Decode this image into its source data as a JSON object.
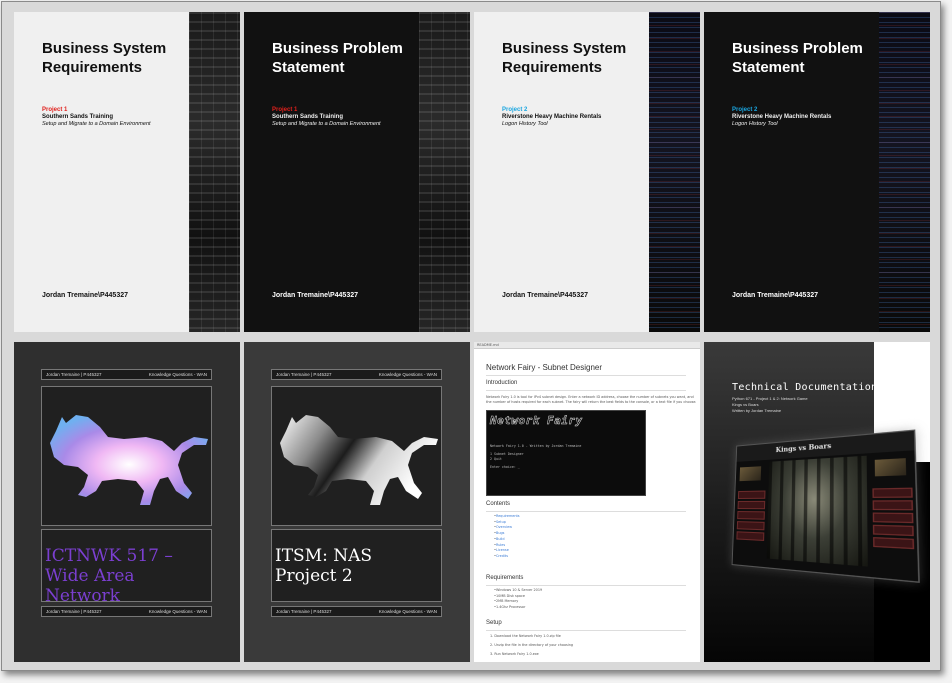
{
  "covers": [
    {
      "title": "Business System Requirements",
      "project": "Project 1",
      "subtitle": "Southern Sands Training",
      "tagline": "Setup and Migrate to a Domain Environment",
      "author": "Jordan Tremaine\\P445327"
    },
    {
      "title": "Business Problem Statement",
      "project": "Project 1",
      "subtitle": "Southern Sands Training",
      "tagline": "Setup and Migrate to a Domain Environment",
      "author": "Jordan Tremaine\\P445327"
    },
    {
      "title": "Business System Requirements",
      "project": "Project 2",
      "subtitle": "Riverstone Heavy Machine Rentals",
      "tagline": "Logon History Tool",
      "author": "Jordan Tremaine\\P445327"
    },
    {
      "title": "Business Problem Statement",
      "project": "Project 2",
      "subtitle": "Riverstone Heavy Machine Rentals",
      "tagline": "Logon History Tool",
      "author": "Jordan Tremaine\\P445327"
    }
  ],
  "lion_cards": [
    {
      "header_left": "Jordan Tremaine | P445327",
      "header_right": "Knowledge Questions - WAN",
      "title_line1": "ICTNWK 517 –",
      "title_line2": "Wide Area Network",
      "footer_left": "Jordan Tremaine | P445327",
      "footer_right": "Knowledge Questions - WAN"
    },
    {
      "header_left": "Jordan Tremaine | P445327",
      "header_right": "Knowledge Questions - WAN",
      "title_line1": "ITSM: NAS",
      "title_line2": "Project 2",
      "footer_left": "Jordan Tremaine | P445327",
      "footer_right": "Knowledge Questions - WAN"
    }
  ],
  "subnet_doc": {
    "topbar": "README.md",
    "title": "Network Fairy - Subnet Designer",
    "intro_heading": "Introduction",
    "intro_line1": "Network Fairy 1.0 is tool for IPv4 subnet design. Enter a network ID address, choose the number of subnets you want, and",
    "intro_line2": "the number of hosts required for each subnet. The fairy will return the best fields to the console, or a text file if you choose.",
    "terminal_logo": "Network Fairy",
    "terminal_line1": "Network Fairy 1.0 - Written by Jordan Tremaine",
    "terminal_line2": "1 Subnet Designer",
    "terminal_line3": "2 Quit",
    "terminal_line4": "Enter choice: _",
    "contents_heading": "Contents",
    "contents": [
      "Requirements",
      "Setup",
      "Overview",
      "Bugs",
      "Build",
      "Rules",
      "License",
      "Credits"
    ],
    "requirements_heading": "Requirements",
    "requirements": [
      "Windows 10 & Server 2019",
      "10MB Disk space",
      "2MB Memory",
      "1.4Ghz Processor"
    ],
    "setup_heading": "Setup",
    "setup": [
      "1. Download the Network Fairy 1.0.zip file",
      "2. Unzip the file in the directory of your choosing",
      "3. Run Network Fairy 1.0.exe"
    ]
  },
  "tech_doc": {
    "title": "Technical Documentation",
    "line1": "Python 671 - Project 1 & 2: Network Game",
    "line2": "Kings vs Boars",
    "line3": "Written by Jordan Tremaine",
    "screen_title": "Kings vs Boars"
  }
}
